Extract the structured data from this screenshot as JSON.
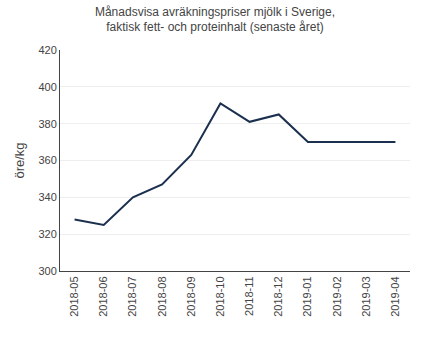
{
  "chart_data": {
    "type": "line",
    "title": "Månadsvisa avräkningspriser mjölk i Sverige,\nfaktisk fett- och proteinhalt (senaste året)",
    "ylabel": "öre/kg",
    "categories": [
      "2018-05",
      "2018-06",
      "2018-07",
      "2018-08",
      "2018-09",
      "2018-10",
      "2018-11",
      "2018-12",
      "2019-01",
      "2019-02",
      "2019-03",
      "2019-04"
    ],
    "values": [
      328,
      325,
      340,
      347,
      363,
      391,
      381,
      385,
      370,
      370,
      370,
      370
    ],
    "color": "#1b2f4e",
    "ylim": [
      300,
      420
    ],
    "yticks": [
      300,
      320,
      340,
      360,
      380,
      400,
      420
    ],
    "grid": true
  }
}
